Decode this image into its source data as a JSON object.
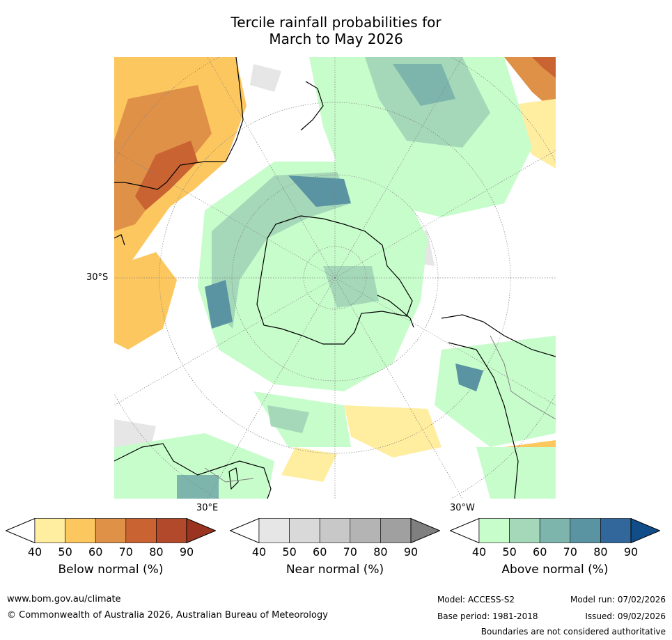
{
  "title": {
    "line1": "Tercile rainfall probabilities for",
    "line2": "March to May 2026"
  },
  "map": {
    "labels": {
      "lat_30s": "30°S",
      "lon_30e": "30°E",
      "lon_30w": "30°W"
    },
    "colors": {
      "ocean_land_bg": "#ffffff",
      "coast": "#000000",
      "border": "#808080",
      "grid": "#808080"
    }
  },
  "legends": [
    {
      "id": "below",
      "label": "Below normal (%)",
      "ticks": [
        "40",
        "50",
        "60",
        "70",
        "80",
        "90"
      ],
      "colors": [
        "#ffeda0",
        "#fdc75f",
        "#df9147",
        "#c96332",
        "#b1492a"
      ],
      "low_color": "#ffffff",
      "high_color": "#9a3320"
    },
    {
      "id": "near",
      "label": "Near normal (%)",
      "ticks": [
        "40",
        "50",
        "60",
        "70",
        "80",
        "90"
      ],
      "colors": [
        "#e6e6e6",
        "#d9d9d9",
        "#c8c8c8",
        "#b4b4b4",
        "#a0a0a0"
      ],
      "low_color": "#ffffff",
      "high_color": "#7f7f7f"
    },
    {
      "id": "above",
      "label": "Above normal (%)",
      "ticks": [
        "40",
        "50",
        "60",
        "70",
        "80",
        "90"
      ],
      "colors": [
        "#c7fccb",
        "#a4d8b8",
        "#7db5ad",
        "#5a93a2",
        "#32679b"
      ],
      "low_color": "#ffffff",
      "high_color": "#104d89"
    }
  ],
  "footer": {
    "website": "www.bom.gov.au/climate",
    "copyright": "© Commonwealth of Australia 2026, Australian Bureau of Meteorology",
    "model": "Model: ACCESS-S2",
    "model_run": "Model run: 07/02/2026",
    "base_period": "Base period: 1981-2018",
    "issued": "Issued: 09/02/2026",
    "disclaimer": "Boundaries are not considered authoritative"
  }
}
